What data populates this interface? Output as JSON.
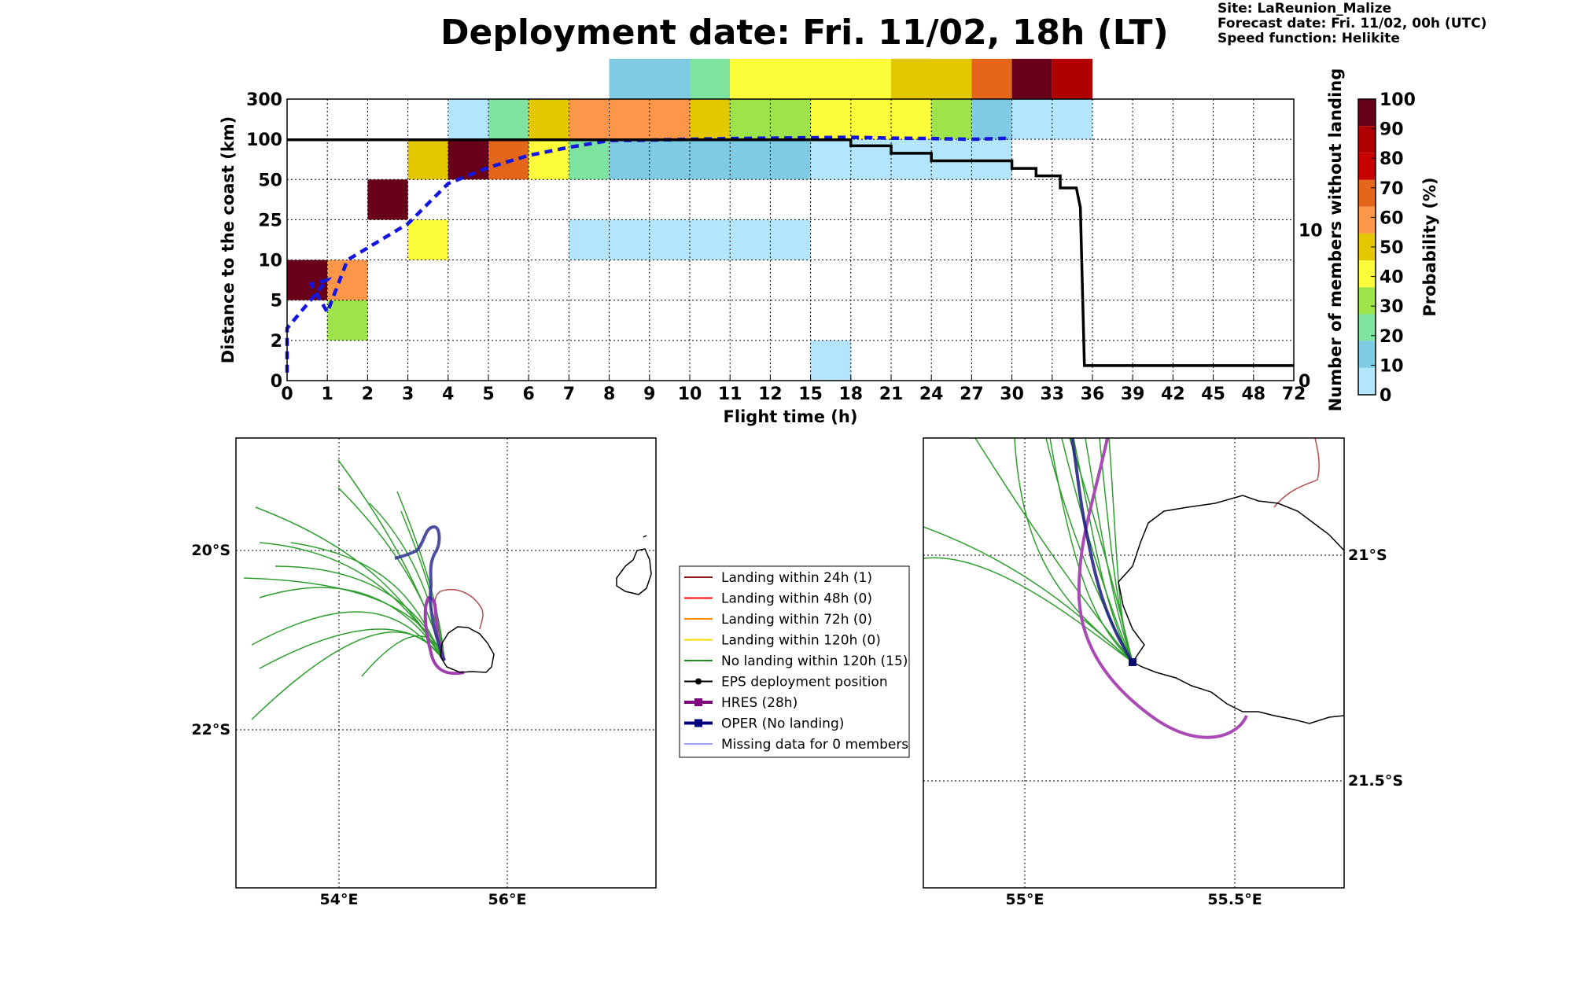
{
  "header": {
    "title": "Deployment date: Fri. 11/02, 18h (LT)",
    "site": "Site: LaReunion_Malize",
    "forecast": "Forecast date: Fri. 11/02, 00h (UTC)",
    "speed": "Speed function: Helikite"
  },
  "colorbar": {
    "label": "Probability (%)",
    "ticks": [
      "0",
      "10",
      "20",
      "30",
      "40",
      "50",
      "60",
      "70",
      "80",
      "90",
      "100"
    ],
    "colors": [
      "#b3e5fc",
      "#7ecbe3",
      "#7fe3a0",
      "#9de34a",
      "#fcfc3a",
      "#e3c800",
      "#fc974a",
      "#e3661b",
      "#c80000",
      "#b00000",
      "#690019"
    ]
  },
  "chart_data": {
    "type": "heatmap",
    "xlabel": "Flight time (h)",
    "ylabel": "Distance to the coast (km)",
    "ylabel_right": "Number of members without landing",
    "x_ticks": [
      "0",
      "1",
      "2",
      "3",
      "4",
      "5",
      "6",
      "7",
      "8",
      "9",
      "10",
      "11",
      "12",
      "15",
      "18",
      "21",
      "24",
      "27",
      "30",
      "33",
      "36",
      "39",
      "42",
      "45",
      "48",
      "72"
    ],
    "y_ticks": [
      "0",
      "2",
      "5",
      "10",
      "25",
      "50",
      "100",
      "300"
    ],
    "y_right_ticks": [
      {
        "label": "0",
        "value": 0
      },
      {
        "label": "10",
        "value": 10
      }
    ],
    "cells": [
      {
        "x0": 0,
        "x1": 1,
        "y": 2,
        "color": "#690019"
      },
      {
        "x0": 1,
        "x1": 2,
        "y": 1,
        "color": "#9de34a"
      },
      {
        "x0": 1,
        "x1": 2,
        "y": 2,
        "color": "#fc974a"
      },
      {
        "x0": 2,
        "x1": 3,
        "y": 4,
        "color": "#690019"
      },
      {
        "x0": 3,
        "x1": 4,
        "y": 3,
        "color": "#fcfc3a"
      },
      {
        "x0": 3,
        "x1": 4,
        "y": 5,
        "color": "#e3c800"
      },
      {
        "x0": 4,
        "x1": 5,
        "y": 5,
        "color": "#690019"
      },
      {
        "x0": 4,
        "x1": 5,
        "y": 6,
        "color": "#b3e5fc"
      },
      {
        "x0": 5,
        "x1": 6,
        "y": 5,
        "color": "#e3661b"
      },
      {
        "x0": 5,
        "x1": 6,
        "y": 6,
        "color": "#7fe3a0"
      },
      {
        "x0": 6,
        "x1": 7,
        "y": 5,
        "color": "#fcfc3a"
      },
      {
        "x0": 6,
        "x1": 7,
        "y": 6,
        "color": "#e3c800"
      },
      {
        "x0": 7,
        "x1": 8,
        "y": 3,
        "color": "#b3e5fc"
      },
      {
        "x0": 7,
        "x1": 8,
        "y": 5,
        "color": "#7fe3a0"
      },
      {
        "x0": 7,
        "x1": 8,
        "y": 6,
        "color": "#fc974a"
      },
      {
        "x0": 8,
        "x1": 12,
        "y": 3,
        "color": "#b3e5fc"
      },
      {
        "x0": 8,
        "x1": 12,
        "y": 5,
        "color": "#7ecbe3"
      },
      {
        "x0": 8,
        "x1": 10,
        "y": 6,
        "color": "#fc974a"
      },
      {
        "x0": 8,
        "x1": 10,
        "y": 7,
        "color": "#7ecbe3"
      },
      {
        "x0": 10,
        "x1": 11,
        "y": 6,
        "color": "#e3c800"
      },
      {
        "x0": 10,
        "x1": 11,
        "y": 7,
        "color": "#7fe3a0"
      },
      {
        "x0": 11,
        "x1": 13,
        "y": 6,
        "color": "#9de34a"
      },
      {
        "x0": 11,
        "x1": 14,
        "y": 7,
        "color": "#fcfc3a"
      },
      {
        "x0": 12,
        "x1": 13,
        "y": 3,
        "color": "#b3e5fc"
      },
      {
        "x0": 12,
        "x1": 13,
        "y": 5,
        "color": "#7ecbe3"
      },
      {
        "x0": 13,
        "x1": 14,
        "y": 0,
        "color": "#b3e5fc"
      },
      {
        "x0": 13,
        "x1": 16,
        "y": 5,
        "color": "#b3e5fc"
      },
      {
        "x0": 13,
        "x1": 16,
        "y": 6,
        "color": "#fcfc3a"
      },
      {
        "x0": 14,
        "x1": 16,
        "y": 7,
        "color": "#fcfc3a"
      },
      {
        "x0": 15,
        "x1": 17,
        "y": 7,
        "color": "#e3c800"
      },
      {
        "x0": 16,
        "x1": 17,
        "y": 6,
        "color": "#9de34a"
      },
      {
        "x0": 16,
        "x1": 18,
        "y": 5,
        "color": "#b3e5fc"
      },
      {
        "x0": 17,
        "x1": 18,
        "y": 6,
        "color": "#7ecbe3"
      },
      {
        "x0": 17,
        "x1": 18,
        "y": 7,
        "color": "#e3661b"
      },
      {
        "x0": 18,
        "x1": 19,
        "y": 7,
        "color": "#690019"
      },
      {
        "x0": 18,
        "x1": 20,
        "y": 6,
        "color": "#b3e5fc"
      },
      {
        "x0": 19,
        "x1": 20,
        "y": 7,
        "color": "#b00000"
      }
    ],
    "mean_distance_km": [
      [
        0,
        0.2
      ],
      [
        0,
        1.3
      ],
      [
        1,
        2.5
      ],
      [
        0.6,
        2.4
      ],
      [
        1,
        1.7
      ],
      [
        1.5,
        3
      ],
      [
        2,
        3.3
      ],
      [
        3,
        3.9
      ],
      [
        4,
        4.9
      ],
      [
        5,
        5.3
      ],
      [
        6,
        5.6
      ],
      [
        7,
        5.8
      ],
      [
        8,
        5.97
      ],
      [
        9,
        5.98
      ],
      [
        10,
        6
      ],
      [
        11,
        6.02
      ],
      [
        12,
        6.03
      ],
      [
        14,
        6.05
      ],
      [
        15,
        6.03
      ],
      [
        16,
        6.02
      ],
      [
        17,
        6.0
      ],
      [
        18,
        6.03
      ]
    ],
    "members_without_landing": [
      [
        0,
        16
      ],
      [
        14,
        16
      ],
      [
        14,
        15.6
      ],
      [
        15,
        15.6
      ],
      [
        15,
        15.1
      ],
      [
        16,
        15.1
      ],
      [
        16,
        14.6
      ],
      [
        18,
        14.6
      ],
      [
        18,
        14.1
      ],
      [
        18.6,
        14.1
      ],
      [
        18.6,
        13.6
      ],
      [
        19.2,
        13.6
      ],
      [
        19.2,
        12.8
      ],
      [
        19.6,
        12.8
      ],
      [
        19.7,
        11.5
      ],
      [
        19.8,
        1
      ],
      [
        25,
        1
      ]
    ],
    "right_axis_max": 18.7,
    "maps": [
      {
        "lat_labels": [
          "20°S",
          "22°S"
        ],
        "lon_labels": [
          "54°E",
          "56°E"
        ],
        "legend": [
          {
            "label": "Landing within 24h (1)",
            "color": "#8b1a1a",
            "marker": "none",
            "width": 2
          },
          {
            "label": "Landing within 48h (0)",
            "color": "#ff0000",
            "marker": "none",
            "width": 2
          },
          {
            "label": "Landing within 72h (0)",
            "color": "#ff8c00",
            "marker": "none",
            "width": 2
          },
          {
            "label": "Landing within 120h (0)",
            "color": "#ffd700",
            "marker": "none",
            "width": 2
          },
          {
            "label": "No landing within 120h (15)",
            "color": "#228b22",
            "marker": "none",
            "width": 2
          },
          {
            "label": "EPS deployment position",
            "color": "#000000",
            "marker": "circle",
            "width": 2
          },
          {
            "label": "HRES (28h)",
            "color": "#800080",
            "marker": "square",
            "width": 4
          },
          {
            "label": "OPER (No landing)",
            "color": "#000080",
            "marker": "square",
            "width": 4
          },
          {
            "label": "Missing data for 0 members",
            "color": "#4040ff",
            "marker": "none",
            "width": 1
          }
        ]
      },
      {
        "lat_labels": [
          "21°S",
          "21.5°S"
        ],
        "lon_labels": [
          "55°E",
          "55.5°E"
        ]
      }
    ]
  }
}
